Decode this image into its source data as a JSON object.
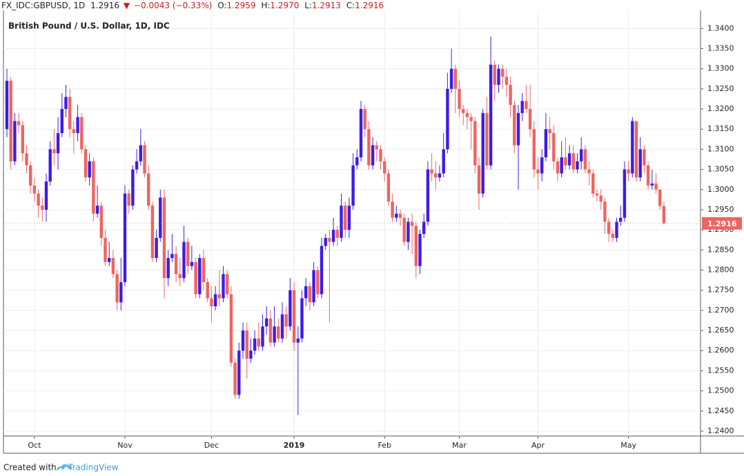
{
  "header": {
    "symbol": "FX_IDC:GBPUSD, 1D",
    "last": "1.2916",
    "arrow": "▼",
    "change": "−0.0043 (−0.33%)",
    "ohlc_labels": [
      "O:",
      "H:",
      "L:",
      "C:"
    ],
    "ohlc_values": [
      "1.2959",
      "1.2970",
      "1.2913",
      "1.2916"
    ]
  },
  "footer": {
    "text": "Created with",
    "brand": "TradingView"
  },
  "chart_data": {
    "type": "candlestick",
    "title": "British Pound / U.S. Dollar, 1D, IDC",
    "up_color": "#3d1ce8",
    "down_color": "#ef6461",
    "grid": true,
    "ylim": [
      1.2388,
      1.3445
    ],
    "yticks": [
      {
        "value": 1.24,
        "label": "1.2400"
      },
      {
        "value": 1.245,
        "label": "1.2450"
      },
      {
        "value": 1.25,
        "label": "1.2500"
      },
      {
        "value": 1.255,
        "label": "1.2550"
      },
      {
        "value": 1.26,
        "label": "1.2600"
      },
      {
        "value": 1.265,
        "label": "1.2650"
      },
      {
        "value": 1.27,
        "label": "1.2700"
      },
      {
        "value": 1.275,
        "label": "1.2750"
      },
      {
        "value": 1.28,
        "label": "1.2800"
      },
      {
        "value": 1.285,
        "label": "1.2850"
      },
      {
        "value": 1.29,
        "label": "1.2900"
      },
      {
        "value": 1.295,
        "label": "1.2950"
      },
      {
        "value": 1.3,
        "label": "1.3000"
      },
      {
        "value": 1.305,
        "label": "1.3050"
      },
      {
        "value": 1.31,
        "label": "1.3100"
      },
      {
        "value": 1.315,
        "label": "1.3150"
      },
      {
        "value": 1.32,
        "label": "1.3200"
      },
      {
        "value": 1.325,
        "label": "1.3250"
      },
      {
        "value": 1.33,
        "label": "1.3300"
      },
      {
        "value": 1.335,
        "label": "1.3350"
      },
      {
        "value": 1.34,
        "label": "1.3400"
      }
    ],
    "categories": [
      null,
      null,
      null,
      null,
      null,
      null,
      null,
      "Oct",
      null,
      null,
      null,
      null,
      null,
      null,
      null,
      null,
      null,
      null,
      null,
      null,
      null,
      null,
      null,
      null,
      null,
      null,
      null,
      null,
      null,
      null,
      "Nov",
      null,
      null,
      null,
      null,
      null,
      null,
      null,
      null,
      null,
      null,
      null,
      null,
      null,
      null,
      null,
      null,
      null,
      null,
      null,
      null,
      null,
      "Dec",
      null,
      null,
      null,
      null,
      null,
      null,
      null,
      null,
      null,
      null,
      null,
      null,
      null,
      null,
      null,
      null,
      null,
      null,
      null,
      null,
      "2019",
      null,
      null,
      null,
      null,
      null,
      null,
      null,
      null,
      null,
      null,
      null,
      null,
      null,
      null,
      null,
      null,
      null,
      null,
      null,
      null,
      null,
      null,
      "Feb",
      null,
      null,
      null,
      null,
      null,
      null,
      null,
      null,
      null,
      null,
      null,
      null,
      null,
      null,
      null,
      null,
      null,
      null,
      "Mar",
      null,
      null,
      null,
      null,
      null,
      null,
      null,
      null,
      null,
      null,
      null,
      null,
      null,
      null,
      null,
      null,
      null,
      null,
      null,
      "Apr",
      null,
      null,
      null,
      null,
      null,
      null,
      null,
      null,
      null,
      null,
      null,
      null,
      null,
      null,
      null,
      null,
      null,
      null,
      null,
      null,
      null,
      null,
      "May",
      null,
      null,
      null,
      null,
      null,
      null,
      null,
      null,
      null
    ],
    "open": [
      1.315,
      1.327,
      1.307,
      1.317,
      1.316,
      1.309,
      1.306,
      1.301,
      1.299,
      1.296,
      1.295,
      1.302,
      1.31,
      1.309,
      1.314,
      1.32,
      1.323,
      1.315,
      1.314,
      1.318,
      1.31,
      1.303,
      1.307,
      1.294,
      1.296,
      1.288,
      1.282,
      1.283,
      1.279,
      1.272,
      1.277,
      1.299,
      1.296,
      1.305,
      1.307,
      1.311,
      1.304,
      1.296,
      1.283,
      1.288,
      1.298,
      1.278,
      1.283,
      1.284,
      1.279,
      1.278,
      1.287,
      1.281,
      1.282,
      1.274,
      1.283,
      1.277,
      1.273,
      1.271,
      1.274,
      1.273,
      1.279,
      1.274,
      1.257,
      1.249,
      1.26,
      1.265,
      1.258,
      1.26,
      1.263,
      1.261,
      1.266,
      1.268,
      1.262,
      1.266,
      1.263,
      1.269,
      1.266,
      1.275,
      1.262,
      1.263,
      1.273,
      1.276,
      1.272,
      1.28,
      1.274,
      1.286,
      1.288,
      1.287,
      1.29,
      1.288,
      1.296,
      1.29,
      1.296,
      1.306,
      1.308,
      1.32,
      1.315,
      1.306,
      1.311,
      1.31,
      1.307,
      1.304,
      1.297,
      1.293,
      1.294,
      1.293,
      1.287,
      1.292,
      1.291,
      1.281,
      1.289,
      1.292,
      1.305,
      1.304,
      1.303,
      1.304,
      1.31,
      1.325,
      1.33,
      1.325,
      1.32,
      1.319,
      1.318,
      1.317,
      1.306,
      1.299,
      1.319,
      1.306,
      1.331,
      1.326,
      1.33,
      1.328,
      1.326,
      1.321,
      1.311,
      1.319,
      1.322,
      1.32,
      1.315,
      1.305,
      1.304,
      1.308,
      1.315,
      1.314,
      1.307,
      1.304,
      1.308,
      1.306,
      1.309,
      1.305,
      1.307,
      1.31,
      1.305,
      1.304,
      1.299,
      1.2985,
      1.297,
      1.292,
      1.289,
      1.288,
      1.292,
      1.293,
      1.305,
      1.304,
      1.317,
      1.303,
      1.31,
      1.306,
      1.301,
      1.3015,
      1.3,
      1.2959
    ],
    "high": [
      1.33,
      1.328,
      1.319,
      1.319,
      1.317,
      1.311,
      1.307,
      1.303,
      1.3,
      1.298,
      1.304,
      1.312,
      1.315,
      1.318,
      1.324,
      1.326,
      1.325,
      1.317,
      1.321,
      1.319,
      1.311,
      1.309,
      1.308,
      1.301,
      1.297,
      1.29,
      1.287,
      1.285,
      1.28,
      1.283,
      1.301,
      1.3,
      1.306,
      1.31,
      1.315,
      1.312,
      1.306,
      1.297,
      1.29,
      1.3,
      1.3,
      1.285,
      1.289,
      1.286,
      1.283,
      1.291,
      1.288,
      1.286,
      1.283,
      1.284,
      1.285,
      1.278,
      1.276,
      1.276,
      1.28,
      1.281,
      1.28,
      1.276,
      1.258,
      1.262,
      1.267,
      1.267,
      1.263,
      1.265,
      1.267,
      1.269,
      1.271,
      1.27,
      1.271,
      1.268,
      1.272,
      1.271,
      1.278,
      1.277,
      1.266,
      1.275,
      1.278,
      1.277,
      1.282,
      1.281,
      1.288,
      1.289,
      1.29,
      1.293,
      1.291,
      1.299,
      1.297,
      1.298,
      1.309,
      1.31,
      1.322,
      1.321,
      1.317,
      1.313,
      1.312,
      1.311,
      1.308,
      1.305,
      1.299,
      1.296,
      1.295,
      1.294,
      1.293,
      1.294,
      1.292,
      1.29,
      1.294,
      1.307,
      1.309,
      1.307,
      1.306,
      1.314,
      1.329,
      1.335,
      1.331,
      1.327,
      1.321,
      1.32,
      1.319,
      1.318,
      1.308,
      1.32,
      1.323,
      1.338,
      1.332,
      1.331,
      1.331,
      1.33,
      1.328,
      1.322,
      1.321,
      1.324,
      1.326,
      1.326,
      1.317,
      1.308,
      1.31,
      1.319,
      1.318,
      1.316,
      1.308,
      1.312,
      1.313,
      1.311,
      1.311,
      1.309,
      1.313,
      1.311,
      1.307,
      1.305,
      1.3,
      1.3,
      1.298,
      1.293,
      1.29,
      1.293,
      1.296,
      1.307,
      1.307,
      1.318,
      1.317,
      1.313,
      1.311,
      1.307,
      1.305,
      1.304,
      1.3,
      1.297
    ],
    "low": [
      1.313,
      1.305,
      1.306,
      1.314,
      1.307,
      1.304,
      1.299,
      1.297,
      1.293,
      1.292,
      1.292,
      1.301,
      1.306,
      1.305,
      1.313,
      1.318,
      1.313,
      1.309,
      1.312,
      1.309,
      1.302,
      1.301,
      1.292,
      1.293,
      1.286,
      1.281,
      1.281,
      1.278,
      1.27,
      1.27,
      1.276,
      1.294,
      1.295,
      1.304,
      1.306,
      1.303,
      1.295,
      1.282,
      1.282,
      1.287,
      1.273,
      1.276,
      1.282,
      1.277,
      1.276,
      1.277,
      1.279,
      1.28,
      1.273,
      1.273,
      1.275,
      1.272,
      1.267,
      1.27,
      1.271,
      1.272,
      1.273,
      1.256,
      1.248,
      1.248,
      1.258,
      1.253,
      1.257,
      1.259,
      1.26,
      1.26,
      1.264,
      1.261,
      1.261,
      1.262,
      1.262,
      1.263,
      1.265,
      1.26,
      1.244,
      1.262,
      1.271,
      1.27,
      1.271,
      1.273,
      1.273,
      1.285,
      1.267,
      1.286,
      1.286,
      1.287,
      1.288,
      1.288,
      1.295,
      1.305,
      1.307,
      1.313,
      1.305,
      1.305,
      1.307,
      1.305,
      1.302,
      1.296,
      1.292,
      1.292,
      1.291,
      1.286,
      1.285,
      1.284,
      1.278,
      1.279,
      1.288,
      1.291,
      1.302,
      1.3,
      1.302,
      1.303,
      1.309,
      1.324,
      1.319,
      1.318,
      1.316,
      1.315,
      1.31,
      1.304,
      1.295,
      1.298,
      1.305,
      1.305,
      1.322,
      1.324,
      1.325,
      1.323,
      1.318,
      1.309,
      1.3,
      1.317,
      1.319,
      1.313,
      1.303,
      1.3,
      1.302,
      1.307,
      1.31,
      1.305,
      1.302,
      1.303,
      1.305,
      1.305,
      1.304,
      1.304,
      1.305,
      1.304,
      1.301,
      1.298,
      1.297,
      1.295,
      1.289,
      1.287,
      1.287,
      1.287,
      1.291,
      1.292,
      1.302,
      1.303,
      1.302,
      1.302,
      1.304,
      1.3,
      1.3,
      1.299,
      1.295,
      1.2913
    ],
    "close": [
      1.327,
      1.307,
      1.317,
      1.316,
      1.309,
      1.306,
      1.301,
      1.299,
      1.296,
      1.295,
      1.302,
      1.31,
      1.309,
      1.314,
      1.32,
      1.323,
      1.315,
      1.314,
      1.318,
      1.31,
      1.303,
      1.307,
      1.294,
      1.296,
      1.288,
      1.282,
      1.283,
      1.279,
      1.272,
      1.277,
      1.299,
      1.296,
      1.305,
      1.307,
      1.311,
      1.304,
      1.296,
      1.283,
      1.288,
      1.298,
      1.278,
      1.283,
      1.284,
      1.279,
      1.278,
      1.287,
      1.281,
      1.282,
      1.274,
      1.283,
      1.277,
      1.273,
      1.271,
      1.274,
      1.273,
      1.279,
      1.274,
      1.257,
      1.249,
      1.26,
      1.265,
      1.258,
      1.26,
      1.263,
      1.261,
      1.266,
      1.268,
      1.262,
      1.266,
      1.263,
      1.269,
      1.266,
      1.275,
      1.262,
      1.263,
      1.273,
      1.276,
      1.272,
      1.28,
      1.274,
      1.286,
      1.288,
      1.287,
      1.29,
      1.288,
      1.296,
      1.29,
      1.296,
      1.306,
      1.308,
      1.32,
      1.315,
      1.306,
      1.311,
      1.31,
      1.307,
      1.304,
      1.297,
      1.293,
      1.294,
      1.293,
      1.287,
      1.292,
      1.291,
      1.281,
      1.289,
      1.292,
      1.305,
      1.304,
      1.303,
      1.304,
      1.31,
      1.325,
      1.33,
      1.325,
      1.32,
      1.319,
      1.318,
      1.317,
      1.306,
      1.299,
      1.319,
      1.306,
      1.331,
      1.326,
      1.33,
      1.328,
      1.326,
      1.321,
      1.311,
      1.319,
      1.322,
      1.32,
      1.315,
      1.305,
      1.304,
      1.308,
      1.315,
      1.314,
      1.307,
      1.304,
      1.308,
      1.306,
      1.309,
      1.305,
      1.307,
      1.31,
      1.305,
      1.304,
      1.299,
      1.2985,
      1.297,
      1.292,
      1.289,
      1.288,
      1.292,
      1.293,
      1.305,
      1.304,
      1.317,
      1.303,
      1.31,
      1.306,
      1.301,
      1.3015,
      1.3,
      1.2959,
      1.2916
    ]
  }
}
